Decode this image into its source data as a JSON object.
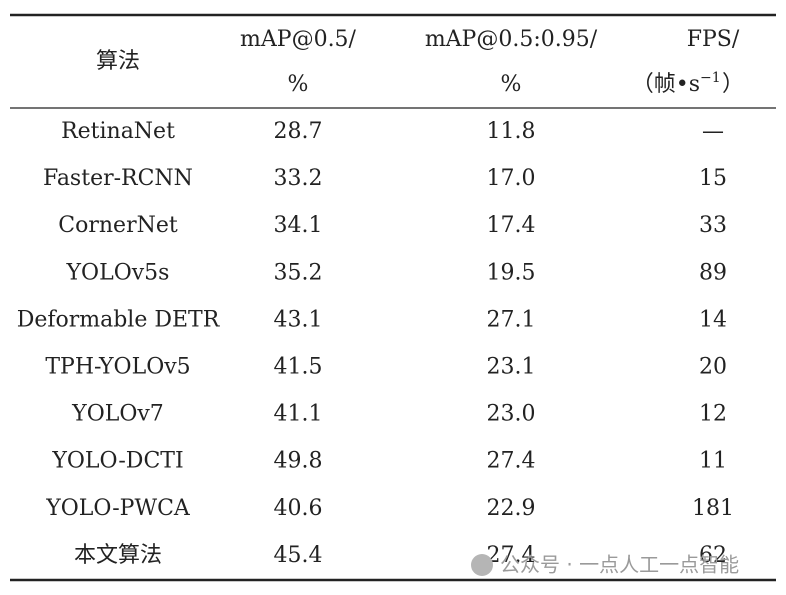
{
  "table": {
    "header": {
      "col0": "算法",
      "col1": [
        "mAP@0.5/",
        "%"
      ],
      "col2": [
        "mAP@0.5:0.95/",
        "%"
      ],
      "col3": [
        "FPS/",
        "（帧•s",
        "−1",
        "）"
      ]
    },
    "rows": [
      [
        "RetinaNet",
        "28.7",
        "11.8",
        "—"
      ],
      [
        "Faster-RCNN",
        "33.2",
        "17.0",
        "15"
      ],
      [
        "CornerNet",
        "34.1",
        "17.4",
        "33"
      ],
      [
        "YOLOv5s",
        "35.2",
        "19.5",
        "89"
      ],
      [
        "Deformable DETR",
        "43.1",
        "27.1",
        "14"
      ],
      [
        "TPH-YOLOv5",
        "41.5",
        "23.1",
        "20"
      ],
      [
        "YOLOv7",
        "41.1",
        "23.0",
        "12"
      ],
      [
        "YOLO-DCTI",
        "49.8",
        "27.4",
        "11"
      ],
      [
        "YOLO-PWCA",
        "40.6",
        "22.9",
        "181"
      ],
      [
        "本文算法",
        "45.4",
        "27.4",
        "62"
      ]
    ]
  },
  "watermark": "公众号 · 一点人工一点智能"
}
